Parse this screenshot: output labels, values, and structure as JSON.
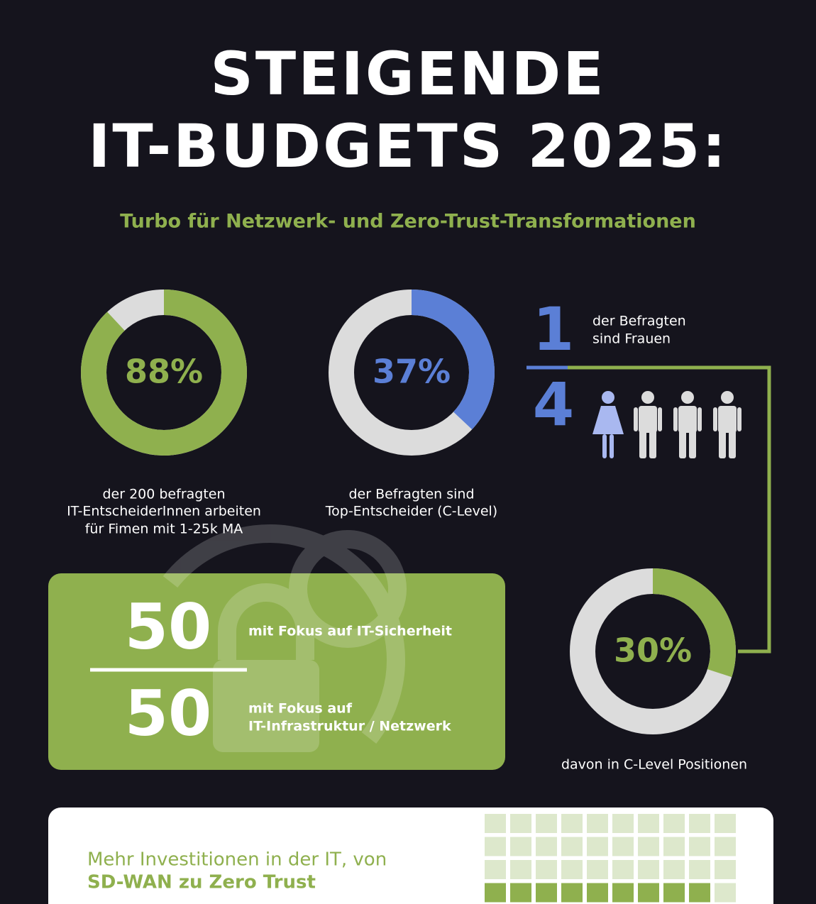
{
  "header": {
    "title": [
      "STEIGENDE",
      "IT-BUDGETS 2025:"
    ],
    "subtitle": "Turbo für Netzwerk- und Zero-Trust-Transformationen"
  },
  "donuts": [
    {
      "value": 88,
      "label": "88%",
      "color": "#8fb04e",
      "caption": [
        "der 200 befragten",
        "IT-EntscheiderInnen arbeiten",
        "für Fimen mit 1-25k MA"
      ]
    },
    {
      "value": 37,
      "label": "37%",
      "color": "#5b7fd6",
      "caption": [
        "der Befragten sind",
        "Top-Entscheider (C-Level)"
      ]
    },
    {
      "value": 30,
      "label": "30%",
      "color": "#8fb04e",
      "caption": [
        "davon in C-Level Positionen"
      ]
    }
  ],
  "fraction": {
    "numerator": 1,
    "denominator": 4,
    "text": [
      "der Befragten",
      "sind Frauen"
    ]
  },
  "split": {
    "top": {
      "value": 50,
      "text": [
        "mit Fokus auf IT-Sicherheit"
      ]
    },
    "bottom": {
      "value": 50,
      "text": [
        "mit Fokus auf",
        "IT-Infrastruktur / Netzwerk"
      ]
    }
  },
  "card": {
    "text": "Mehr Investitionen in der IT, von",
    "bold": "SD-WAN zu Zero Trust"
  }
}
